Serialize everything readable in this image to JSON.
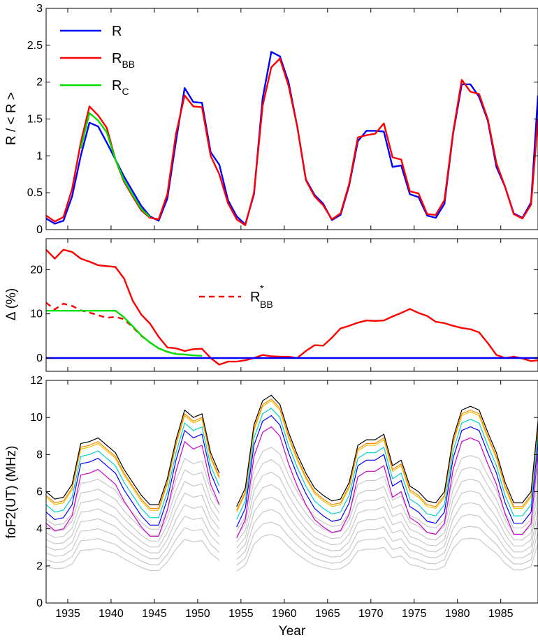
{
  "chart_data": [
    {
      "type": "line",
      "ylabel": "R / < R >",
      "xlabel": "",
      "xlim": [
        1932.5,
        1989.3
      ],
      "ylim": [
        0,
        3
      ],
      "yticks": [
        "0",
        "0.5",
        "1",
        "1.5",
        "2",
        "2.5",
        "3"
      ],
      "legend_position": "top-left",
      "legend": [
        {
          "label": "R",
          "sub": "",
          "sup": ""
        },
        {
          "label": "R",
          "sub": "BB",
          "sup": ""
        },
        {
          "label": "R",
          "sub": "C",
          "sup": ""
        }
      ],
      "series": [
        {
          "name": "R",
          "color": "#0000ff",
          "x": [
            1932.5,
            1933.5,
            1934.5,
            1935.5,
            1936.5,
            1937.5,
            1938.5,
            1939.5,
            1940.5,
            1941.5,
            1942.5,
            1943.5,
            1944.5,
            1945.5,
            1946.5,
            1947.5,
            1948.5,
            1949.5,
            1950.5,
            1951.5,
            1952.5,
            1953.5,
            1954.5,
            1955.5,
            1956.5,
            1957.5,
            1958.5,
            1959.5,
            1960.5,
            1961.5,
            1962.5,
            1963.5,
            1964.5,
            1965.5,
            1966.5,
            1967.5,
            1968.5,
            1969.5,
            1970.5,
            1971.5,
            1972.5,
            1973.5,
            1974.5,
            1975.5,
            1976.5,
            1977.5,
            1978.5,
            1979.5,
            1980.5,
            1981.5,
            1982.5,
            1983.5,
            1984.5,
            1985.5,
            1986.5,
            1987.5,
            1988.5,
            1989.3
          ],
          "y": [
            0.15,
            0.08,
            0.12,
            0.45,
            1.0,
            1.45,
            1.4,
            1.18,
            0.95,
            0.72,
            0.52,
            0.32,
            0.18,
            0.12,
            0.42,
            1.2,
            1.92,
            1.73,
            1.72,
            1.05,
            0.88,
            0.4,
            0.18,
            0.07,
            0.48,
            1.78,
            2.41,
            2.35,
            2.0,
            1.4,
            0.68,
            0.47,
            0.35,
            0.13,
            0.2,
            0.6,
            1.2,
            1.34,
            1.34,
            1.33,
            0.85,
            0.87,
            0.48,
            0.44,
            0.19,
            0.16,
            0.35,
            1.3,
            1.97,
            1.97,
            1.8,
            1.48,
            0.85,
            0.58,
            0.22,
            0.16,
            0.37,
            1.82
          ]
        },
        {
          "name": "R_BB",
          "color": "#ff0000",
          "x": [
            1932.5,
            1933.5,
            1934.5,
            1935.5,
            1936.5,
            1937.5,
            1938.5,
            1939.5,
            1940.5,
            1941.5,
            1942.5,
            1943.5,
            1944.5,
            1945.5,
            1946.5,
            1947.5,
            1948.5,
            1949.5,
            1950.5,
            1951.5,
            1952.5,
            1953.5,
            1954.5,
            1955.5,
            1956.5,
            1957.5,
            1958.5,
            1959.5,
            1960.5,
            1961.5,
            1962.5,
            1963.5,
            1964.5,
            1965.5,
            1966.5,
            1967.5,
            1968.5,
            1969.5,
            1970.5,
            1971.5,
            1972.5,
            1973.5,
            1974.5,
            1975.5,
            1976.5,
            1977.5,
            1978.5,
            1979.5,
            1980.5,
            1981.5,
            1982.5,
            1983.5,
            1984.5,
            1985.5,
            1986.5,
            1987.5,
            1988.5,
            1989.3
          ],
          "y": [
            0.19,
            0.11,
            0.17,
            0.55,
            1.18,
            1.67,
            1.55,
            1.38,
            0.95,
            0.65,
            0.45,
            0.26,
            0.16,
            0.14,
            0.48,
            1.3,
            1.82,
            1.67,
            1.66,
            1.0,
            0.75,
            0.36,
            0.14,
            0.06,
            0.5,
            1.68,
            2.2,
            2.32,
            1.95,
            1.4,
            0.67,
            0.45,
            0.33,
            0.14,
            0.22,
            0.62,
            1.25,
            1.28,
            1.3,
            1.44,
            0.98,
            0.95,
            0.52,
            0.49,
            0.21,
            0.2,
            0.4,
            1.32,
            2.03,
            1.87,
            1.84,
            1.5,
            0.9,
            0.58,
            0.21,
            0.15,
            0.34,
            1.5
          ]
        },
        {
          "name": "R_C",
          "color": "#00dd00",
          "x": [
            1936.5,
            1937.5,
            1938.5,
            1939.5,
            1940.5,
            1941.5,
            1942.5,
            1943.5,
            1944.5
          ],
          "y": [
            1.1,
            1.58,
            1.48,
            1.32,
            0.95,
            0.67,
            0.47,
            0.28,
            0.17
          ]
        }
      ]
    },
    {
      "type": "line",
      "ylabel": "Δ (%)",
      "xlabel": "",
      "xlim": [
        1932.5,
        1989.3
      ],
      "ylim": [
        -3,
        27
      ],
      "yticks": [
        "0",
        "10",
        "20"
      ],
      "legend": [
        {
          "label": "R",
          "sub": "BB",
          "sup": "*",
          "style": "dashed"
        }
      ],
      "legend_position": "center",
      "series": [
        {
          "name": "R_BB",
          "color": "#ff0000",
          "x": [
            1932.5,
            1933.5,
            1934.5,
            1935.5,
            1936.5,
            1937.5,
            1938.5,
            1939.5,
            1940.5,
            1941.5,
            1942.5,
            1943.5,
            1944.5,
            1945.5,
            1946.5,
            1947.5,
            1948.5,
            1949.5,
            1950.5,
            1951.5,
            1952.5,
            1953.5,
            1954.5,
            1955.5,
            1956.5,
            1957.5,
            1958.5,
            1959.5,
            1960.5,
            1961.5,
            1962.5,
            1963.5,
            1964.5,
            1965.5,
            1966.5,
            1967.5,
            1968.5,
            1969.5,
            1970.5,
            1971.5,
            1972.5,
            1973.5,
            1974.5,
            1975.5,
            1976.5,
            1977.5,
            1978.5,
            1979.5,
            1980.5,
            1981.5,
            1982.5,
            1983.5,
            1984.5,
            1985.5,
            1986.5,
            1987.5,
            1988.5,
            1989.3
          ],
          "y": [
            24.5,
            22.5,
            24.5,
            24.0,
            22.5,
            21.8,
            21.0,
            20.8,
            20.6,
            18.0,
            13.0,
            9.8,
            7.8,
            4.8,
            2.4,
            2.2,
            1.6,
            2.0,
            2.1,
            0.0,
            -1.5,
            -0.8,
            -0.8,
            -0.5,
            0.0,
            0.7,
            0.4,
            0.3,
            0.3,
            0.0,
            1.6,
            2.9,
            2.8,
            4.6,
            6.7,
            7.3,
            8.0,
            8.5,
            8.4,
            8.5,
            9.4,
            10.2,
            11.1,
            10.2,
            9.5,
            8.2,
            7.9,
            7.3,
            6.8,
            6.5,
            5.8,
            3.4,
            0.7,
            0.0,
            0.3,
            -0.1,
            -0.7,
            -0.5
          ]
        },
        {
          "name": "R_BB*",
          "color": "#ff0000",
          "style": "dashed",
          "x": [
            1932.5,
            1933.5,
            1934.5,
            1935.5,
            1936.5,
            1937.5,
            1938.5,
            1939.5,
            1940.5,
            1941.5,
            1942.5,
            1943.5,
            1944.5,
            1945.5,
            1946.5,
            1947.5
          ],
          "y": [
            12.5,
            11.0,
            12.3,
            11.8,
            10.8,
            10.3,
            9.7,
            9.1,
            9.3,
            8.8,
            7.0,
            5.0,
            3.5,
            2.2,
            1.4,
            1.0
          ]
        },
        {
          "name": "R_C",
          "color": "#00dd00",
          "x": [
            1932.5,
            1933.5,
            1934.5,
            1935.5,
            1936.5,
            1937.5,
            1938.5,
            1939.5,
            1940.5,
            1941.5,
            1942.5,
            1943.5,
            1944.5,
            1945.5,
            1946.5,
            1947.5,
            1948.5,
            1949.5,
            1950.5
          ],
          "y": [
            10.7,
            10.7,
            10.7,
            10.7,
            10.7,
            10.7,
            10.7,
            10.7,
            10.7,
            9.2,
            7.2,
            5.1,
            3.5,
            2.2,
            1.4,
            0.9,
            0.8,
            0.6,
            0.5
          ]
        },
        {
          "name": "R",
          "color": "#0000ff",
          "x": [
            1932.5,
            1989.3
          ],
          "y": [
            0,
            0
          ]
        }
      ]
    },
    {
      "type": "line",
      "ylabel": "foF2(UT) (MHz)",
      "xlabel": "Year",
      "xlim": [
        1932.5,
        1989.3
      ],
      "ylim": [
        0,
        12
      ],
      "yticks": [
        "0",
        "2",
        "4",
        "6",
        "8",
        "10",
        "12"
      ],
      "xticks": [
        "1935",
        "1940",
        "1945",
        "1950",
        "1955",
        "1960",
        "1965",
        "1970",
        "1975",
        "1980",
        "1985"
      ],
      "x": [
        1932.5,
        1933.5,
        1934.5,
        1935.5,
        1936.5,
        1937.5,
        1938.5,
        1939.5,
        1940.5,
        1941.5,
        1942.5,
        1943.5,
        1944.5,
        1945.5,
        1946.5,
        1947.5,
        1948.5,
        1949.5,
        1950.5,
        1951.5,
        1952.5,
        1953.5,
        1954.5,
        1955.5,
        1956.5,
        1957.5,
        1958.5,
        1959.5,
        1960.5,
        1961.5,
        1962.5,
        1963.5,
        1964.5,
        1965.5,
        1966.5,
        1967.5,
        1968.5,
        1969.5,
        1970.5,
        1971.5,
        1972.5,
        1973.5,
        1974.5,
        1975.5,
        1976.5,
        1977.5,
        1978.5,
        1979.5,
        1980.5,
        1981.5,
        1982.5,
        1983.5,
        1984.5,
        1985.5,
        1986.5,
        1987.5,
        1988.5,
        1989.3
      ],
      "gap_after": 1952.5,
      "series": [
        {
          "color": "#000000",
          "offset": 0.0
        },
        {
          "color": "#ff8800",
          "offset": -0.2
        },
        {
          "color": "#f0c000",
          "offset": -0.3
        },
        {
          "color": "#00d0d0",
          "offset": -0.7
        },
        {
          "color": "#0000ff",
          "offset": -1.1
        },
        {
          "color": "#cc00cc",
          "offset": -1.7
        },
        {
          "color": "#c8c8c8",
          "offset": -2.6
        },
        {
          "color": "#c8c8c8",
          "offset": -3.2
        },
        {
          "color": "#c8c8c8",
          "offset": -3.8
        },
        {
          "color": "#c8c8c8",
          "offset": -4.3
        },
        {
          "color": "#c8c8c8",
          "offset": -4.8
        },
        {
          "color": "#c8c8c8",
          "offset": -5.2
        },
        {
          "color": "#c8c8c8",
          "offset": -5.6
        },
        {
          "color": "#c8c8c8",
          "offset": -6.0
        }
      ],
      "base": [
        6.0,
        5.6,
        5.7,
        6.4,
        8.6,
        8.7,
        8.9,
        8.5,
        8.1,
        7.2,
        6.5,
        5.8,
        5.3,
        5.3,
        6.7,
        8.8,
        10.4,
        10.0,
        10.2,
        8.1,
        7.0,
        6.0,
        5.2,
        6.2,
        9.6,
        10.9,
        11.2,
        10.7,
        9.2,
        8.0,
        7.0,
        6.2,
        5.8,
        5.5,
        5.6,
        6.5,
        8.5,
        8.8,
        8.8,
        9.1,
        7.4,
        7.7,
        6.3,
        6.0,
        5.5,
        5.4,
        6.0,
        8.9,
        10.4,
        10.6,
        10.4,
        9.2,
        8.1,
        6.5,
        5.4,
        5.4,
        6.0,
        9.8
      ]
    }
  ]
}
